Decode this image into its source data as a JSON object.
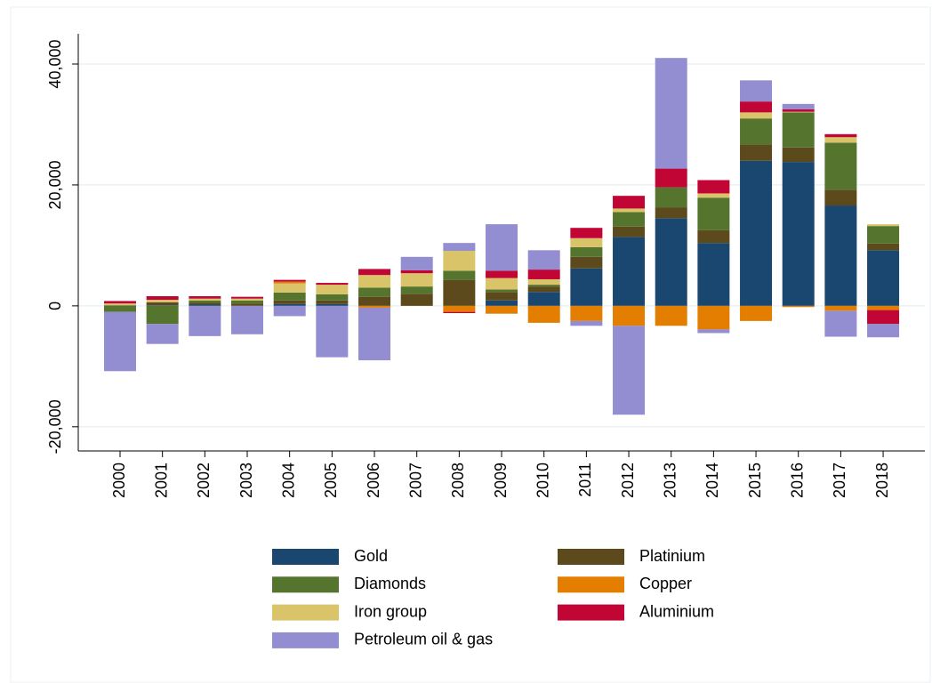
{
  "chart_data": {
    "type": "stacked_bar",
    "categories": [
      "2000",
      "2001",
      "2002",
      "2003",
      "2004",
      "2005",
      "2006",
      "2007",
      "2008",
      "2009",
      "2010",
      "2011",
      "2012",
      "2013",
      "2014",
      "2015",
      "2016",
      "2017",
      "2018"
    ],
    "series": [
      {
        "name": "Gold",
        "color": "#1a476f",
        "values": [
          0,
          100,
          200,
          0,
          300,
          300,
          0,
          0,
          0,
          900,
          2300,
          6200,
          11400,
          14500,
          10400,
          24000,
          23800,
          16600,
          9200
        ]
      },
      {
        "name": "Diamonds",
        "color": "#55752f",
        "values": [
          -1000,
          -3000,
          400,
          500,
          1300,
          1000,
          1500,
          1200,
          1500,
          400,
          300,
          1600,
          2400,
          3300,
          5400,
          4300,
          5800,
          7800,
          2900
        ]
      },
      {
        "name": "Iron group",
        "color": "#d9c46a",
        "values": [
          300,
          400,
          300,
          300,
          1500,
          1600,
          2100,
          2200,
          3300,
          1900,
          900,
          1500,
          600,
          0,
          700,
          1000,
          100,
          900,
          300
        ]
      },
      {
        "name": "Petroleum oil & gas",
        "color": "#938dd2",
        "values": [
          -9800,
          -3300,
          -5000,
          -4700,
          -1700,
          -8500,
          -8700,
          2200,
          1300,
          7700,
          3200,
          -800,
          -14700,
          18300,
          -600,
          3500,
          900,
          -4300,
          -2200
        ]
      },
      {
        "name": "Platinium",
        "color": "#5c4a1c",
        "values": [
          100,
          500,
          300,
          400,
          600,
          600,
          1500,
          2000,
          4300,
          1400,
          900,
          1900,
          1700,
          1800,
          2100,
          2700,
          2400,
          2600,
          1100
        ]
      },
      {
        "name": "Copper",
        "color": "#e37e00",
        "values": [
          0,
          0,
          0,
          0,
          300,
          0,
          -300,
          0,
          -1000,
          -1300,
          -2800,
          -2500,
          -3300,
          -3300,
          -3900,
          -2500,
          -200,
          -800,
          -700
        ]
      },
      {
        "name": "Aluminium",
        "color": "#c10534",
        "values": [
          400,
          600,
          400,
          300,
          300,
          300,
          1000,
          500,
          -200,
          1200,
          1600,
          1700,
          2100,
          3100,
          2200,
          1800,
          400,
          500,
          -2300
        ]
      }
    ],
    "ylim": [
      -24000,
      45000
    ],
    "yticks": [
      {
        "value": -20000,
        "label": "-20,000"
      },
      0,
      {
        "value": 20000,
        "label": "20,000"
      },
      {
        "value": 40000,
        "label": "40,000"
      }
    ],
    "grid": true,
    "legend": "bottom"
  }
}
